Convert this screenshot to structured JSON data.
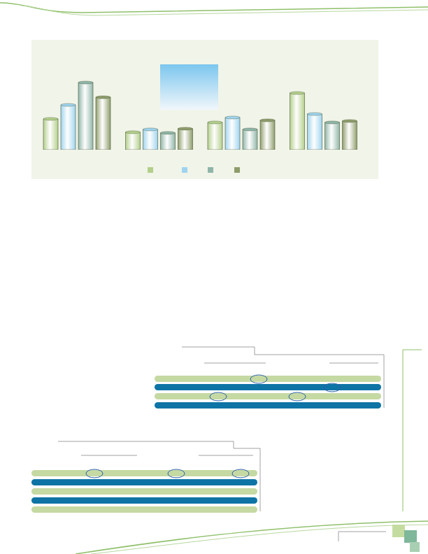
{
  "chart_data": {
    "type": "bar",
    "categories": [
      null,
      null,
      null,
      null
    ],
    "series": [
      {
        "color": "#b3cf8b",
        "values": [
          44,
          25,
          39,
          81
        ]
      },
      {
        "color": "#9ed4f0",
        "values": [
          64,
          29,
          46,
          51
        ]
      },
      {
        "color": "#8fb5a9",
        "values": [
          96,
          24,
          29,
          39
        ]
      },
      {
        "color": "#8e9c6b",
        "values": [
          75,
          30,
          42,
          41
        ]
      }
    ],
    "ylim": [
      0,
      100
    ],
    "tick_labels": false,
    "legend": "bottom"
  }
}
